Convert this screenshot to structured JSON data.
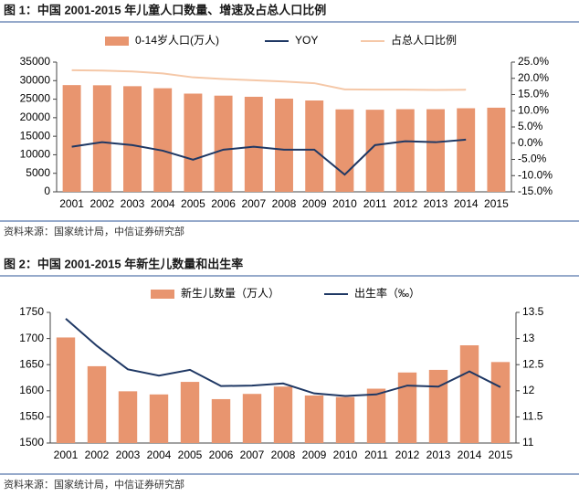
{
  "chart_data": [
    {
      "type": "bar",
      "title": "图 1：中国 2001-2015 年儿童人口数量、增速及占总人口比例",
      "source": "资料来源：国家统计局，中信证券研究部",
      "categories": [
        "2001",
        "2002",
        "2003",
        "2004",
        "2005",
        "2006",
        "2007",
        "2008",
        "2009",
        "2010",
        "2011",
        "2012",
        "2013",
        "2014",
        "2015"
      ],
      "series": [
        {
          "name": "0-14岁人口(万人)",
          "type": "bar",
          "color": "#e8956f",
          "values": [
            28800,
            28750,
            28500,
            27950,
            26500,
            25950,
            25650,
            25150,
            24650,
            22250,
            22150,
            22300,
            22300,
            22550,
            22700
          ]
        },
        {
          "name": "YOY",
          "type": "line",
          "axis": "y2",
          "color": "#1f3864",
          "values": [
            -1.1,
            0.3,
            -0.6,
            -2.3,
            -5.1,
            -2.0,
            -1.1,
            -2.0,
            -2.0,
            -9.7,
            -0.6,
            0.6,
            0.3,
            1.1,
            null
          ]
        },
        {
          "name": "占总人口比例",
          "type": "line",
          "axis": "y2",
          "color": "#f5c8a8",
          "values": [
            22.5,
            22.4,
            22.1,
            21.5,
            20.3,
            19.8,
            19.4,
            19.0,
            18.5,
            16.6,
            16.5,
            16.5,
            16.4,
            16.5,
            null
          ]
        }
      ],
      "ylim": [
        0,
        35000
      ],
      "yticks": [
        0,
        5000,
        10000,
        15000,
        20000,
        25000,
        30000,
        35000
      ],
      "y2lim": [
        -15,
        25
      ],
      "y2ticks": [
        {
          "value": -15,
          "label": "-15.0%"
        },
        {
          "value": -10,
          "label": "-10.0%"
        },
        {
          "value": -5,
          "label": "-5.0%"
        },
        {
          "value": 0,
          "label": "0.0%"
        },
        {
          "value": 5,
          "label": "5.0%"
        },
        {
          "value": 10,
          "label": "10.0%"
        },
        {
          "value": 15,
          "label": "15.0%"
        },
        {
          "value": 20,
          "label": "20.0%"
        },
        {
          "value": 25,
          "label": "25.0%"
        }
      ],
      "grid": false
    },
    {
      "type": "bar",
      "title": "图 2：中国 2001-2015 年新生儿数量和出生率",
      "source": "资料来源：国家统计局，中信证券研究部",
      "categories": [
        "2001",
        "2002",
        "2003",
        "2004",
        "2005",
        "2006",
        "2007",
        "2008",
        "2009",
        "2010",
        "2011",
        "2012",
        "2013",
        "2014",
        "2015"
      ],
      "series": [
        {
          "name": "新生儿数量（万人）",
          "type": "bar",
          "color": "#e8956f",
          "values": [
            1702,
            1647,
            1599,
            1593,
            1617,
            1584,
            1594,
            1608,
            1591,
            1588,
            1604,
            1635,
            1640,
            1687,
            1655
          ]
        },
        {
          "name": "出生率（‰）",
          "type": "line",
          "axis": "y2",
          "color": "#1f3864",
          "values": [
            13.38,
            12.86,
            12.41,
            12.29,
            12.4,
            12.09,
            12.1,
            12.14,
            11.95,
            11.9,
            11.93,
            12.1,
            12.08,
            12.37,
            12.07
          ]
        }
      ],
      "ylim": [
        1500,
        1750
      ],
      "yticks": [
        1500,
        1550,
        1600,
        1650,
        1700,
        1750
      ],
      "y2lim": [
        11,
        13.5
      ],
      "y2ticks": [
        11,
        11.5,
        12,
        12.5,
        13,
        13.5
      ],
      "grid": false
    }
  ]
}
